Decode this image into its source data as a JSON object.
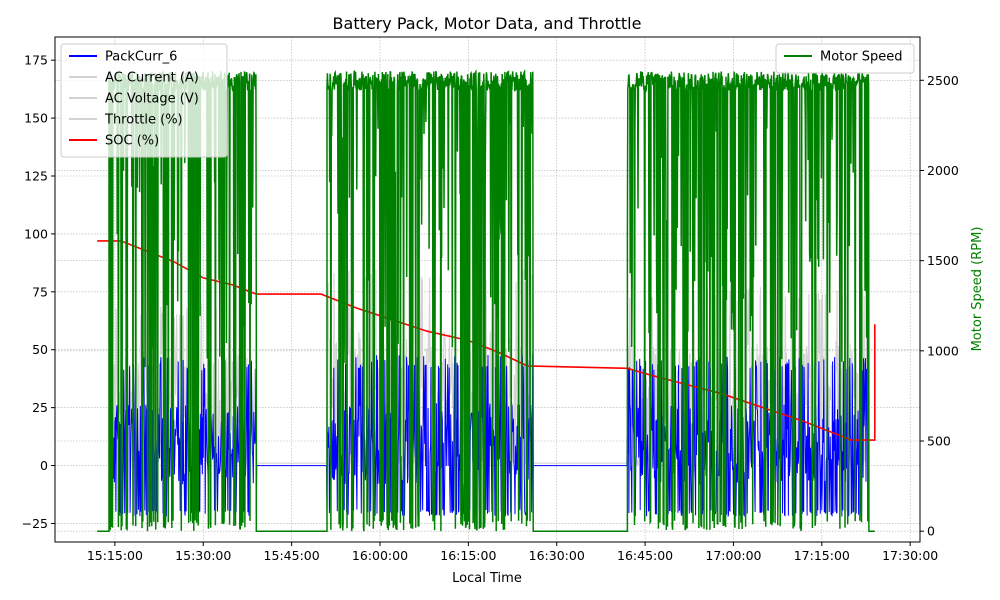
{
  "chart_data": {
    "type": "line",
    "title": "Battery Pack, Motor Data, and Throttle",
    "xlabel": "Local Time",
    "ylabel": "",
    "y2label": "Motor Speed (RPM)",
    "x_ticks": [
      "15:15:00",
      "15:30:00",
      "15:45:00",
      "16:00:00",
      "16:15:00",
      "16:30:00",
      "16:45:00",
      "17:00:00",
      "17:15:00",
      "17:30:00"
    ],
    "y_ticks": [
      "−25",
      "0",
      "25",
      "50",
      "75",
      "100",
      "125",
      "150",
      "175"
    ],
    "y2_ticks": [
      "0",
      "500",
      "1000",
      "1500",
      "2000",
      "2500"
    ],
    "ylim": [
      -33,
      185
    ],
    "y2lim": [
      -60,
      2740
    ],
    "xlim": [
      "15:04:50",
      "17:31:40"
    ],
    "grid": true,
    "legend_left": {
      "placement": "upper-left",
      "entries": [
        {
          "name": "PackCurr_6",
          "color": "#0000ff"
        },
        {
          "name": "AC Current (A)",
          "color": "#d3d3d3"
        },
        {
          "name": "AC Voltage (V)",
          "color": "#d3d3d3"
        },
        {
          "name": "Throttle (%)",
          "color": "#d3d3d3"
        },
        {
          "name": "SOC (%)",
          "color": "#ff0000"
        }
      ]
    },
    "legend_right": {
      "placement": "upper-right",
      "entries": [
        {
          "name": "Motor Speed",
          "color": "#008000"
        }
      ]
    },
    "series": [
      {
        "name": "SOC (%)",
        "axis": "left",
        "color": "#ff0000",
        "points": [
          [
            "15:12:00",
            97
          ],
          [
            "15:16:00",
            97
          ],
          [
            "15:20:00",
            93
          ],
          [
            "15:25:00",
            88
          ],
          [
            "15:30:00",
            81
          ],
          [
            "15:35:00",
            78
          ],
          [
            "15:39:00",
            74
          ],
          [
            "15:50:00",
            74
          ],
          [
            "15:56:00",
            68
          ],
          [
            "16:02:00",
            63
          ],
          [
            "16:08:00",
            58
          ],
          [
            "16:15:00",
            54
          ],
          [
            "16:20:00",
            49
          ],
          [
            "16:25:00",
            43
          ],
          [
            "16:42:00",
            42
          ],
          [
            "16:46:00",
            39
          ],
          [
            "16:52:00",
            35
          ],
          [
            "16:58:00",
            31
          ],
          [
            "17:05:00",
            25
          ],
          [
            "17:12:00",
            19
          ],
          [
            "17:18:00",
            13
          ],
          [
            "17:20:00",
            11
          ],
          [
            "17:24:00",
            11
          ],
          [
            "17:24:00",
            61
          ]
        ]
      },
      {
        "name": "Motor Speed",
        "axis": "right",
        "color": "#008000",
        "pattern": "switching",
        "segments": [
          {
            "start": "15:12:00",
            "end": "15:14:00",
            "level": 0
          },
          {
            "start": "15:14:00",
            "end": "15:39:00",
            "level": 2500
          },
          {
            "start": "15:39:00",
            "end": "15:51:00",
            "level": 0
          },
          {
            "start": "15:51:00",
            "end": "16:26:00",
            "level": 2500
          },
          {
            "start": "16:26:00",
            "end": "16:42:00",
            "level": 0
          },
          {
            "start": "16:42:00",
            "end": "17:23:00",
            "level": 2500
          },
          {
            "start": "17:23:00",
            "end": "17:24:00",
            "level": 0
          }
        ]
      },
      {
        "name": "PackCurr_6",
        "axis": "left",
        "color": "#0000ff",
        "pattern": "noise",
        "idle_value": 0,
        "segments": [
          {
            "start": "15:14:00",
            "end": "15:39:00",
            "min": -22,
            "max": 47
          },
          {
            "start": "15:51:00",
            "end": "16:26:00",
            "min": -22,
            "max": 48
          },
          {
            "start": "16:42:00",
            "end": "17:23:00",
            "min": -22,
            "max": 47
          }
        ]
      },
      {
        "name": "AC Current / AC Voltage / Throttle",
        "axis": "left",
        "color": "#d3d3d3",
        "pattern": "noise",
        "idle_value": 1,
        "segments": [
          {
            "start": "15:14:00",
            "end": "15:39:00",
            "min": 0,
            "max": 70
          },
          {
            "start": "15:51:00",
            "end": "16:26:00",
            "min": 0,
            "max": 85
          },
          {
            "start": "16:42:00",
            "end": "17:23:00",
            "min": 0,
            "max": 77
          }
        ]
      }
    ]
  }
}
